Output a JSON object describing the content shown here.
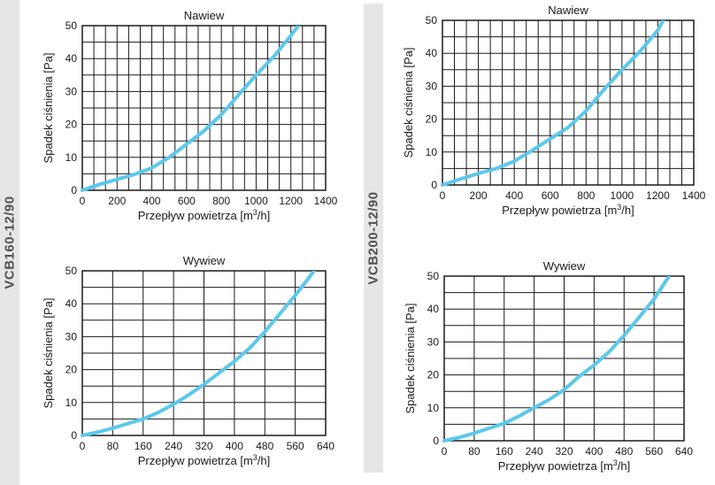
{
  "side_labels": [
    "VCB160-12/90",
    "VCB200-12/90"
  ],
  "chart_data": [
    {
      "type": "line",
      "title": "Nawiew",
      "xlabel": "Przepływ powietrza [m³/h]",
      "ylabel": "Spadek ciśnienia [Pa]",
      "xlim": [
        0,
        1400
      ],
      "ylim": [
        0,
        50
      ],
      "xticks": [
        0,
        200,
        400,
        600,
        800,
        1000,
        1200,
        1400
      ],
      "yticks": [
        0,
        10,
        20,
        30,
        40,
        50
      ],
      "grid": true,
      "line_color": "#5bc8ec",
      "series": [
        {
          "name": "VCB160-12/90 Nawiew",
          "x": [
            0,
            100,
            200,
            300,
            400,
            500,
            600,
            700,
            800,
            900,
            1000,
            1100,
            1200,
            1250
          ],
          "y": [
            0,
            1.8,
            3.3,
            4.8,
            6.8,
            10,
            14,
            18,
            23,
            29,
            35,
            40.5,
            47,
            50.5
          ]
        }
      ]
    },
    {
      "type": "line",
      "title": "Nawiew",
      "xlabel": "Przepływ powietrza [m³/h]",
      "ylabel": "Spadek ciśnienia [Pa]",
      "xlim": [
        0,
        1400
      ],
      "ylim": [
        0,
        50
      ],
      "xticks": [
        0,
        200,
        400,
        600,
        800,
        1000,
        1200,
        1400
      ],
      "yticks": [
        0,
        10,
        20,
        30,
        40,
        50
      ],
      "grid": true,
      "line_color": "#5bc8ec",
      "series": [
        {
          "name": "VCB200-12/90 Nawiew",
          "x": [
            0,
            100,
            200,
            300,
            400,
            500,
            600,
            700,
            800,
            900,
            1000,
            1100,
            1200,
            1230
          ],
          "y": [
            0,
            1.8,
            3.5,
            5,
            7.2,
            10.5,
            14,
            17.5,
            22.5,
            29,
            35,
            40.5,
            47,
            50
          ]
        }
      ]
    },
    {
      "type": "line",
      "title": "Wywiew",
      "xlabel": "Przepływ powietrza [m³/h]",
      "ylabel": "Spadek ciśnienia [Pa]",
      "xlim": [
        0,
        640
      ],
      "ylim": [
        0,
        50
      ],
      "xticks": [
        0,
        80,
        160,
        240,
        320,
        400,
        480,
        560,
        640
      ],
      "yticks": [
        0,
        10,
        20,
        30,
        40,
        50
      ],
      "grid": true,
      "line_color": "#5bc8ec",
      "series": [
        {
          "name": "VCB160-12/90 Wywiew",
          "x": [
            0,
            40,
            80,
            120,
            160,
            200,
            240,
            280,
            320,
            360,
            400,
            440,
            480,
            520,
            560,
            600,
            612
          ],
          "y": [
            0,
            1,
            2.2,
            3.6,
            5,
            7,
            9.5,
            12.3,
            15.5,
            19,
            22.5,
            26.5,
            31.5,
            37,
            42.5,
            48.5,
            50.5
          ]
        }
      ]
    },
    {
      "type": "line",
      "title": "Wywiew",
      "xlabel": "Przepływ powietrza [m³/h]",
      "ylabel": "Spadek ciśnienia [Pa]",
      "xlim": [
        0,
        640
      ],
      "ylim": [
        0,
        50
      ],
      "xticks": [
        0,
        80,
        160,
        240,
        320,
        400,
        480,
        560,
        640
      ],
      "yticks": [
        0,
        10,
        20,
        30,
        40,
        50
      ],
      "grid": true,
      "line_color": "#5bc8ec",
      "series": [
        {
          "name": "VCB200-12/90 Wywiew",
          "x": [
            0,
            40,
            80,
            120,
            160,
            200,
            240,
            280,
            320,
            360,
            400,
            440,
            480,
            520,
            560,
            600
          ],
          "y": [
            0,
            1,
            2.3,
            3.8,
            5.3,
            7.5,
            10,
            12.5,
            15.5,
            19.5,
            23,
            27,
            32,
            37.5,
            43,
            50
          ]
        }
      ]
    }
  ]
}
